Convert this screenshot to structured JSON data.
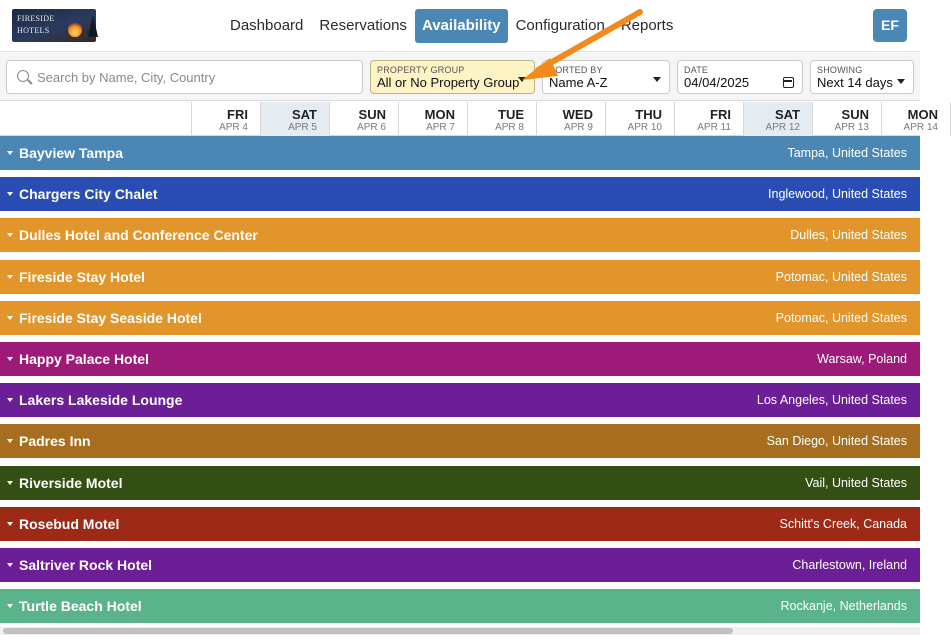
{
  "brand": {
    "logo_text": "FIRESIDE HOTELS"
  },
  "nav": {
    "items": [
      {
        "label": "Dashboard",
        "active": false
      },
      {
        "label": "Reservations",
        "active": false
      },
      {
        "label": "Availability",
        "active": true
      },
      {
        "label": "Configuration",
        "active": false
      },
      {
        "label": "Reports",
        "active": false
      }
    ],
    "user_initials": "EF"
  },
  "filters": {
    "search_placeholder": "Search by Name, City, Country",
    "property_group": {
      "label": "PROPERTY GROUP",
      "value": "All or No Property Group"
    },
    "sorted_by": {
      "label": "SORTED BY",
      "value": "Name A-Z"
    },
    "date": {
      "label": "DATE",
      "value": "04/04/2025"
    },
    "showing": {
      "label": "SHOWING",
      "value": "Next 14 days"
    }
  },
  "days": [
    {
      "dow": "FRI",
      "date": "APR 4",
      "weekend": false
    },
    {
      "dow": "SAT",
      "date": "APR 5",
      "weekend": true
    },
    {
      "dow": "SUN",
      "date": "APR 6",
      "weekend": false
    },
    {
      "dow": "MON",
      "date": "APR 7",
      "weekend": false
    },
    {
      "dow": "TUE",
      "date": "APR 8",
      "weekend": false
    },
    {
      "dow": "WED",
      "date": "APR 9",
      "weekend": false
    },
    {
      "dow": "THU",
      "date": "APR 10",
      "weekend": false
    },
    {
      "dow": "FRI",
      "date": "APR 11",
      "weekend": false
    },
    {
      "dow": "SAT",
      "date": "APR 12",
      "weekend": true
    },
    {
      "dow": "SUN",
      "date": "APR 13",
      "weekend": false
    },
    {
      "dow": "MON",
      "date": "APR 14",
      "weekend": false
    }
  ],
  "properties": [
    {
      "name": "Bayview Tampa",
      "location": "Tampa, United States",
      "color": "#4a87b5"
    },
    {
      "name": "Chargers City Chalet",
      "location": "Inglewood, United States",
      "color": "#2a4db3"
    },
    {
      "name": "Dulles Hotel and Conference Center",
      "location": "Dulles, United States",
      "color": "#e1952b"
    },
    {
      "name": "Fireside Stay Hotel",
      "location": "Potomac, United States",
      "color": "#e1952b"
    },
    {
      "name": "Fireside Stay Seaside Hotel",
      "location": "Potomac, United States",
      "color": "#e1952b"
    },
    {
      "name": "Happy Palace Hotel",
      "location": "Warsaw, Poland",
      "color": "#9c1a78"
    },
    {
      "name": "Lakers Lakeside Lounge",
      "location": "Los Angeles, United States",
      "color": "#6b1e96"
    },
    {
      "name": "Padres Inn",
      "location": "San Diego, United States",
      "color": "#a86e1f"
    },
    {
      "name": "Riverside Motel",
      "location": "Vail, United States",
      "color": "#344f14"
    },
    {
      "name": "Rosebud Motel",
      "location": "Schitt's Creek, Canada",
      "color": "#9c2a17"
    },
    {
      "name": "Saltriver Rock Hotel",
      "location": "Charlestown, Ireland",
      "color": "#6b1e96"
    },
    {
      "name": "Turtle Beach Hotel",
      "location": "Rockanje, Netherlands",
      "color": "#5bb38c"
    }
  ],
  "colors": {
    "accent": "#4a87b5",
    "highlight": "#fdf3c4",
    "arrow": "#f28a1e"
  }
}
